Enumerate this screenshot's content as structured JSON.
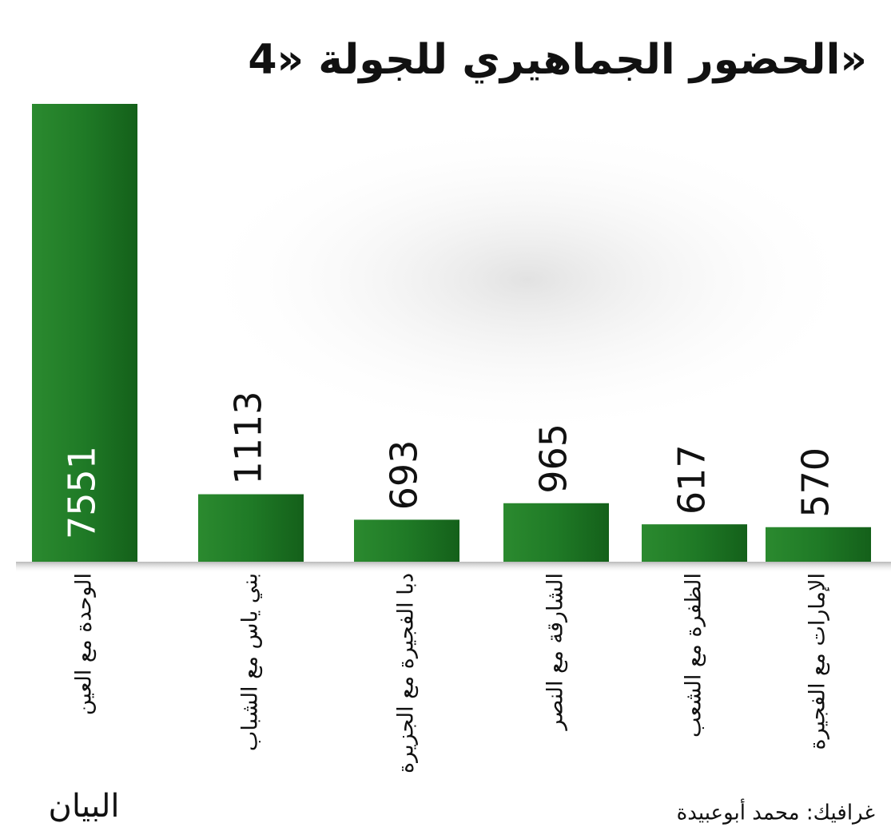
{
  "chart_data": {
    "type": "bar",
    "title": "الحضور الجماهيري للجولة «4»",
    "categories": [
      "الوحدة مع العين",
      "بني ياس مع الشباب",
      "دبا الفجيرة مع الجزيرة",
      "الشارقة مع النصر",
      "الظفرة مع الشعب",
      "الإمارات مع الفجيرة"
    ],
    "values": [
      7551,
      1113,
      693,
      965,
      617,
      570
    ],
    "color": "#1f7a26",
    "credit": "غرافيك: محمد أبوعبيدة",
    "logo": "البيان"
  }
}
